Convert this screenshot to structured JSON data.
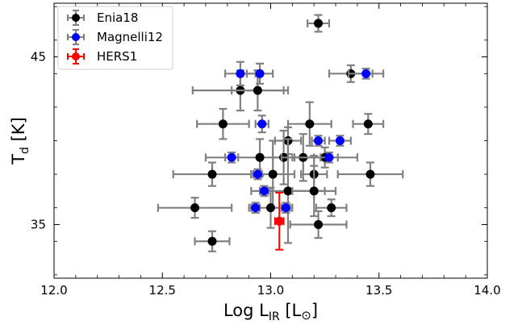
{
  "chart_data": {
    "type": "scatter",
    "xlabel": {
      "main": "Log L",
      "sub": "IR",
      "unit_open": " [L",
      "unit_sym": "⊙",
      "unit_close": "]"
    },
    "ylabel": {
      "main": "T",
      "sub": "d",
      "unit": " [K]"
    },
    "xlim": [
      12.0,
      14.0
    ],
    "ylim": [
      31.8,
      48.2
    ],
    "xticks": [
      12.0,
      12.5,
      13.0,
      13.5,
      14.0
    ],
    "xtick_labels": [
      "12.0",
      "12.5",
      "13.0",
      "13.5",
      "14.0"
    ],
    "yticks": [
      35,
      45
    ],
    "ytick_labels": [
      "35",
      "45"
    ],
    "legend_position": "top-left",
    "series": [
      {
        "name": "Enia18",
        "color": "#000000",
        "errcolor": "#808080",
        "points": [
          {
            "x": 13.22,
            "y": 47.0,
            "xerr": 0.05,
            "yerr": 0.5
          },
          {
            "x": 12.86,
            "y": 43.0,
            "xerr": 0.22,
            "yerr": 1.2
          },
          {
            "x": 12.94,
            "y": 43.0,
            "xerr": 0.12,
            "yerr": 1.2
          },
          {
            "x": 13.37,
            "y": 44.0,
            "xerr": 0.1,
            "yerr": 0.5
          },
          {
            "x": 12.78,
            "y": 41.0,
            "xerr": 0.12,
            "yerr": 0.9
          },
          {
            "x": 13.18,
            "y": 41.0,
            "xerr": 0.1,
            "yerr": 1.3
          },
          {
            "x": 13.45,
            "y": 41.0,
            "xerr": 0.07,
            "yerr": 0.6
          },
          {
            "x": 13.08,
            "y": 40.0,
            "xerr": 0.06,
            "yerr": 0.8
          },
          {
            "x": 12.95,
            "y": 39.0,
            "xerr": 0.25,
            "yerr": 1.1
          },
          {
            "x": 13.06,
            "y": 39.0,
            "xerr": 0.05,
            "yerr": 1.6
          },
          {
            "x": 13.15,
            "y": 39.0,
            "xerr": 0.1,
            "yerr": 1.4
          },
          {
            "x": 13.25,
            "y": 39.0,
            "xerr": 0.15,
            "yerr": 0.6
          },
          {
            "x": 12.73,
            "y": 38.0,
            "xerr": 0.18,
            "yerr": 0.7
          },
          {
            "x": 13.01,
            "y": 38.0,
            "xerr": 0.1,
            "yerr": 2.0
          },
          {
            "x": 13.2,
            "y": 38.0,
            "xerr": 0.06,
            "yerr": 1.1
          },
          {
            "x": 13.46,
            "y": 38.0,
            "xerr": 0.15,
            "yerr": 0.7
          },
          {
            "x": 13.08,
            "y": 37.0,
            "xerr": 0.17,
            "yerr": 3.1
          },
          {
            "x": 13.2,
            "y": 37.0,
            "xerr": 0.1,
            "yerr": 1.5
          },
          {
            "x": 12.65,
            "y": 36.0,
            "xerr": 0.17,
            "yerr": 0.6
          },
          {
            "x": 13.0,
            "y": 36.0,
            "xerr": 0.1,
            "yerr": 1.2
          },
          {
            "x": 13.28,
            "y": 36.0,
            "xerr": 0.07,
            "yerr": 0.5
          },
          {
            "x": 13.22,
            "y": 35.0,
            "xerr": 0.13,
            "yerr": 0.8
          },
          {
            "x": 12.73,
            "y": 34.0,
            "xerr": 0.08,
            "yerr": 0.6
          }
        ]
      },
      {
        "name": "Magnelli12",
        "color": "#0000ff",
        "errcolor": "#808080",
        "points": [
          {
            "x": 12.86,
            "y": 44.0,
            "xerr": 0.07,
            "yerr": 0.7
          },
          {
            "x": 12.95,
            "y": 44.0,
            "xerr": 0.06,
            "yerr": 0.6
          },
          {
            "x": 13.44,
            "y": 44.0,
            "xerr": 0.08,
            "yerr": 0.3
          },
          {
            "x": 12.96,
            "y": 41.0,
            "xerr": 0.03,
            "yerr": 0.5
          },
          {
            "x": 13.22,
            "y": 40.0,
            "xerr": 0.03,
            "yerr": 0.3
          },
          {
            "x": 13.32,
            "y": 40.0,
            "xerr": 0.05,
            "yerr": 0.3
          },
          {
            "x": 12.82,
            "y": 39.0,
            "xerr": 0.03,
            "yerr": 0.3
          },
          {
            "x": 13.27,
            "y": 39.0,
            "xerr": 0.04,
            "yerr": 0.3
          },
          {
            "x": 12.94,
            "y": 38.0,
            "xerr": 0.02,
            "yerr": 0.3
          },
          {
            "x": 12.97,
            "y": 37.0,
            "xerr": 0.02,
            "yerr": 0.3
          },
          {
            "x": 12.93,
            "y": 36.0,
            "xerr": 0.02,
            "yerr": 0.3
          },
          {
            "x": 13.07,
            "y": 36.0,
            "xerr": 0.02,
            "yerr": 0.3
          }
        ]
      },
      {
        "name": "HERS1",
        "color": "#ff0000",
        "errcolor": "#ff0000",
        "points": [
          {
            "x": 13.04,
            "y": 35.2,
            "xerr": 0.02,
            "yerr": 1.7
          }
        ]
      }
    ]
  }
}
